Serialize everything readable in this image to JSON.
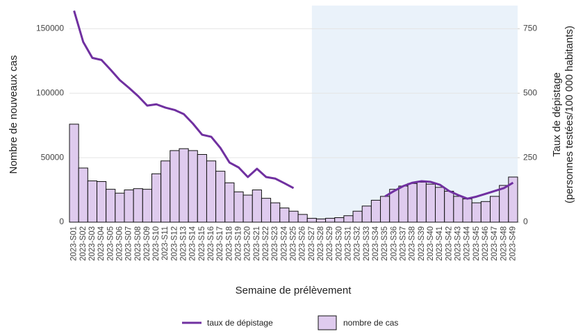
{
  "chart_data": {
    "type": "bar_line",
    "categories": [
      "2023-S01",
      "2023-S02",
      "2023-S03",
      "2023-S04",
      "2023-S05",
      "2023-S06",
      "2023-S07",
      "2023-S08",
      "2023-S09",
      "2023-S10",
      "2023-S11",
      "2023-S12",
      "2023-S13",
      "2023-S14",
      "2023-S15",
      "2023-S16",
      "2023-S17",
      "2023-S18",
      "2023-S19",
      "2023-S20",
      "2023-S21",
      "2023-S22",
      "2023-S23",
      "2023-S24",
      "2023-S25",
      "2023-S26",
      "2023-S27",
      "2023-S28",
      "2023-S29",
      "2023-S30",
      "2023-S31",
      "2023-S32",
      "2023-S33",
      "2023-S34",
      "2023-S35",
      "2023-S36",
      "2023-S37",
      "2023-S38",
      "2023-S39",
      "2023-S40",
      "2023-S41",
      "2023-S42",
      "2023-S43",
      "2023-S44",
      "2023-S45",
      "2023-S46",
      "2023-S47",
      "2023-S48",
      "2023-S49"
    ],
    "series": [
      {
        "name": "nombre de cas",
        "type": "bar",
        "color": "#dfcbee",
        "values": [
          76000,
          42000,
          32000,
          31500,
          25500,
          22500,
          25000,
          26000,
          25500,
          37500,
          47500,
          55500,
          57000,
          55500,
          52500,
          47500,
          39500,
          30500,
          23500,
          21000,
          25000,
          18500,
          15000,
          11000,
          8500,
          6000,
          3000,
          2500,
          3000,
          3500,
          5000,
          8500,
          12500,
          17000,
          20000,
          25500,
          28000,
          30000,
          31000,
          29500,
          27000,
          24000,
          20000,
          18000,
          15000,
          16000,
          20000,
          28500,
          35000
        ]
      },
      {
        "name": "taux de dépistage",
        "type": "line",
        "axis": "y2",
        "color": "#7030a0",
        "values": [
          820,
          699,
          637,
          629,
          591,
          551,
          521,
          489,
          452,
          457,
          444,
          435,
          419,
          382,
          339,
          331,
          288,
          231,
          212,
          175,
          207,
          175,
          169,
          151,
          132,
          null,
          null,
          null,
          null,
          null,
          null,
          null,
          null,
          null,
          100,
          121,
          140,
          153,
          159,
          156,
          145,
          121,
          105,
          91,
          99,
          110,
          121,
          132,
          153
        ]
      }
    ],
    "x_label": "Semaine de prélèvement",
    "y_label": "Nombre de nouveaux cas",
    "y2_label": [
      "Taux de dépistage",
      "(personnes testées/100 000 habitants)"
    ],
    "ylim": [
      0,
      168000
    ],
    "yticks": [
      0,
      50000,
      100000,
      150000
    ],
    "y2lim": [
      0,
      840
    ],
    "y2ticks": [
      0,
      250,
      500,
      750
    ],
    "grid": true,
    "shaded_from": "2023-S27",
    "shade_color": "#eaf2fa",
    "legend": "bottom"
  }
}
